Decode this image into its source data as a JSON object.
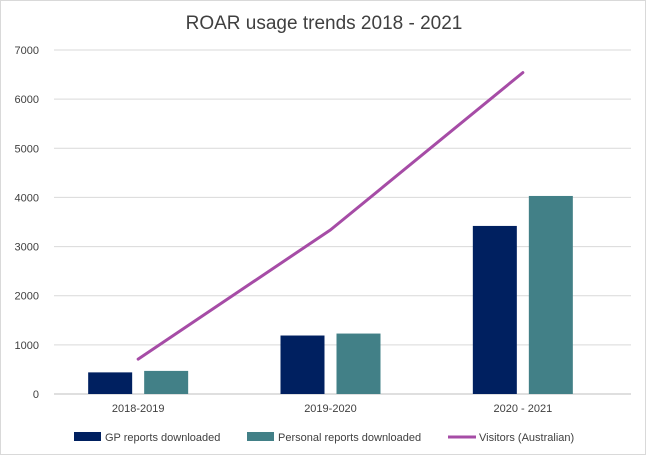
{
  "chart_data": {
    "type": "bar",
    "title": "ROAR usage trends 2018 - 2021",
    "categories": [
      "2018-2019",
      "2019-2020",
      "2020 - 2021"
    ],
    "ylim": [
      0,
      7000
    ],
    "yticks": [
      0,
      1000,
      2000,
      3000,
      4000,
      5000,
      6000,
      7000
    ],
    "grid": true,
    "legend_position": "bottom",
    "series": [
      {
        "name": "GP reports downloaded",
        "type": "bar",
        "color": "#002060",
        "values": [
          440,
          1190,
          3420
        ]
      },
      {
        "name": "Personal reports downloaded",
        "type": "bar",
        "color": "#428087",
        "values": [
          470,
          1230,
          4030
        ]
      },
      {
        "name": "Visitors (Australian)",
        "type": "line",
        "color": "#a64ca6",
        "values": [
          710,
          3340,
          6540
        ]
      }
    ]
  }
}
